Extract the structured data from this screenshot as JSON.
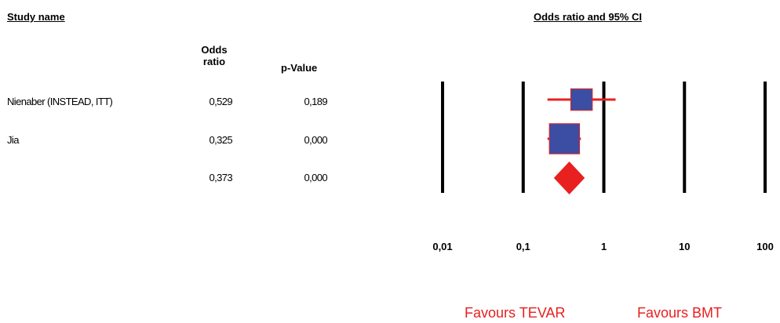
{
  "headers": {
    "study_name": "Study name",
    "chart_title": "Odds ratio and 95% CI",
    "odds_ratio_line1": "Odds",
    "odds_ratio_line2": "ratio",
    "p_value": "p-Value"
  },
  "rows": [
    {
      "study": "Nienaber (INSTEAD, ITT)",
      "odds_ratio": "0,529",
      "p_value": "0,189"
    },
    {
      "study": "Jia",
      "odds_ratio": "0,325",
      "p_value": "0,000"
    },
    {
      "study": "",
      "odds_ratio": "0,373",
      "p_value": "0,000"
    }
  ],
  "favours": {
    "left": "Favours TEVAR",
    "right": "Favours BMT"
  },
  "colors": {
    "box_fill": "#3b4ea3",
    "ci_line": "#e8201f",
    "diamond": "#e8201f",
    "reference_lines": "#000000"
  },
  "chart_data": {
    "type": "forest",
    "x_scale": "log",
    "xlim": [
      0.01,
      100
    ],
    "x_ticks": [
      0.01,
      0.1,
      1,
      10,
      100
    ],
    "x_tick_labels": [
      "0,01",
      "0,1",
      "1",
      "10",
      "100"
    ],
    "title": "Odds ratio and 95% CI",
    "studies": [
      {
        "name": "Nienaber (INSTEAD, ITT)",
        "or": 0.529,
        "ci_low": 0.2,
        "ci_high": 1.4,
        "weight": 0.25
      },
      {
        "name": "Jia",
        "or": 0.325,
        "ci_low": 0.2,
        "ci_high": 0.52,
        "weight": 0.75
      }
    ],
    "summary": {
      "or": 0.373,
      "ci_low": 0.24,
      "ci_high": 0.58
    }
  }
}
